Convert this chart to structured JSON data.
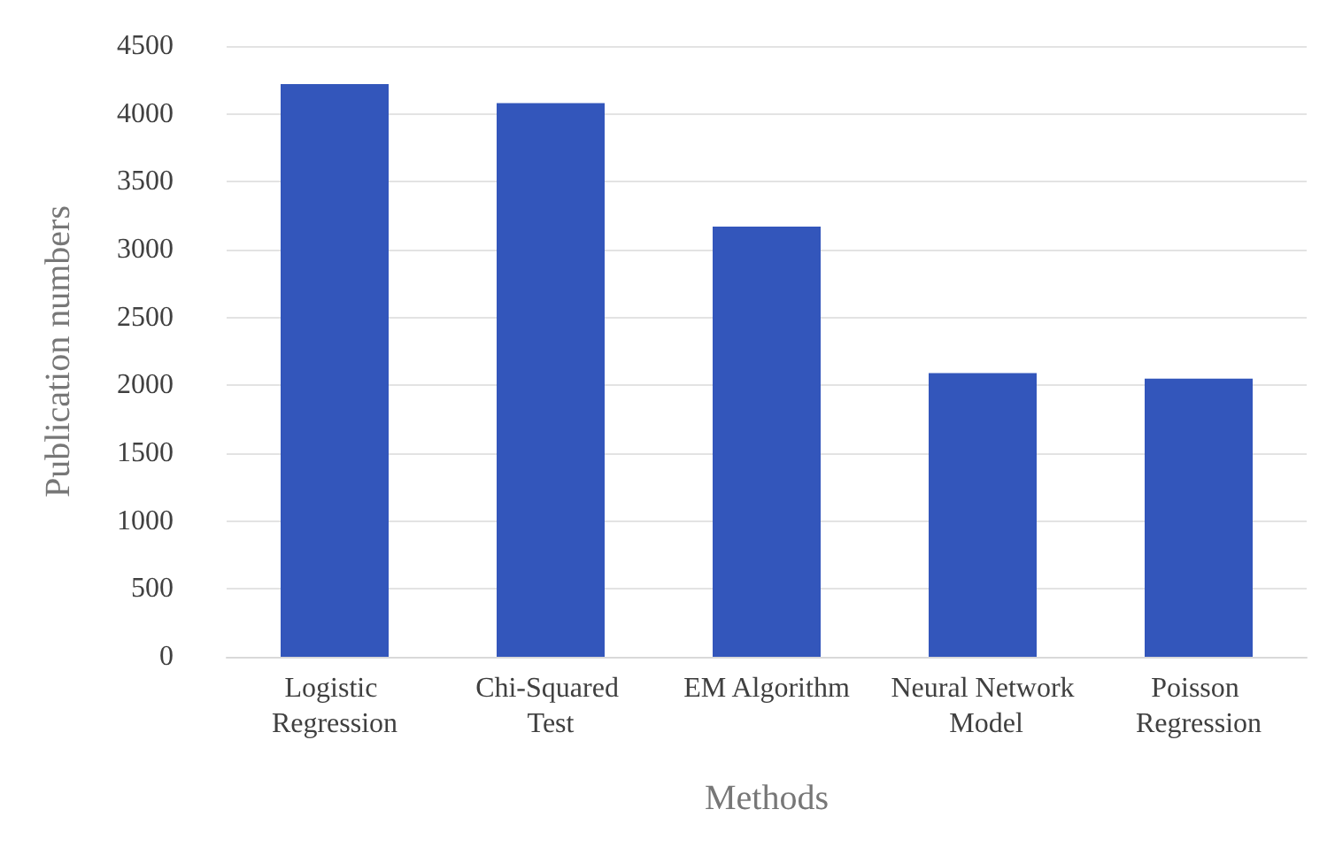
{
  "chart_data": {
    "type": "bar",
    "xlabel": "Methods",
    "ylabel": "Publication numbers",
    "categories": [
      "Logistic Regression",
      "Chi-Squared Test",
      "EM Algorithm",
      "Neural Network Model",
      "Poisson Regression"
    ],
    "values": [
      4220,
      4080,
      3170,
      2090,
      2050
    ],
    "color": "#3356bb",
    "ylim": [
      0,
      4500
    ],
    "yticks": [
      0,
      500,
      1000,
      1500,
      2000,
      2500,
      3000,
      3500,
      4000,
      4500
    ],
    "grid": "y"
  }
}
